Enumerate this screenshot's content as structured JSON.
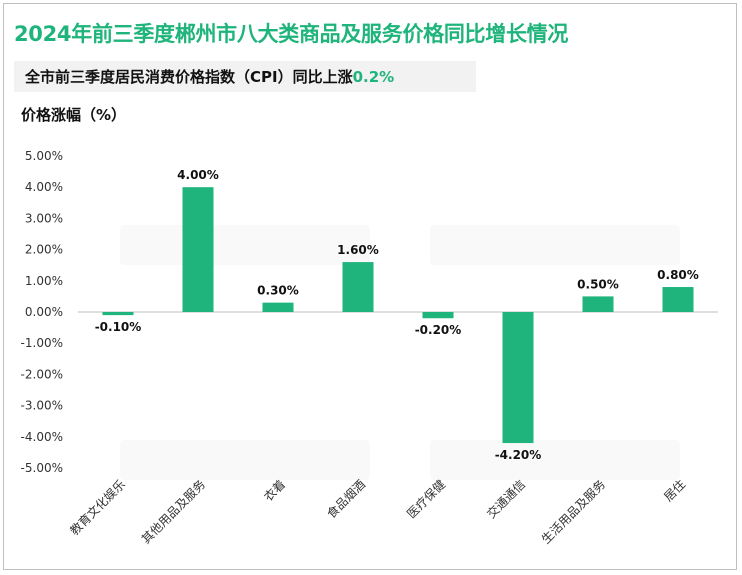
{
  "chart_data": {
    "type": "bar",
    "title": "2024年前三季度郴州市八大类商品及服务价格同比增长情况",
    "subtitle_prefix": "全市前三季度居民消费价格指数（CPI）同比上涨",
    "subtitle_value": "0.2%",
    "ylabel": "价格涨幅（%）",
    "xlabel": "",
    "categories": [
      "教育文化娱乐",
      "其他用品及服务",
      "衣着",
      "食品烟酒",
      "医疗保健",
      "交通通信",
      "生活用品及服务",
      "居住"
    ],
    "values": [
      -0.1,
      4.0,
      0.3,
      1.6,
      -0.2,
      -4.2,
      0.5,
      0.8
    ],
    "data_labels": [
      "-0.10%",
      "4.00%",
      "0.30%",
      "1.60%",
      "-0.20%",
      "-4.20%",
      "0.50%",
      "0.80%"
    ],
    "ylim": [
      -5.0,
      5.0
    ],
    "yticks": [
      5,
      4,
      3,
      2,
      1,
      0,
      -1,
      -2,
      -3,
      -4,
      -5
    ],
    "ytick_labels": [
      "5.00%",
      "4.00%",
      "3.00%",
      "2.00%",
      "1.00%",
      "0.00%",
      "-1.00%",
      "-2.00%",
      "-3.00%",
      "-4.00%",
      "-5.00%"
    ],
    "bar_color": "#1fb47c",
    "grid": false,
    "legend": "none"
  }
}
